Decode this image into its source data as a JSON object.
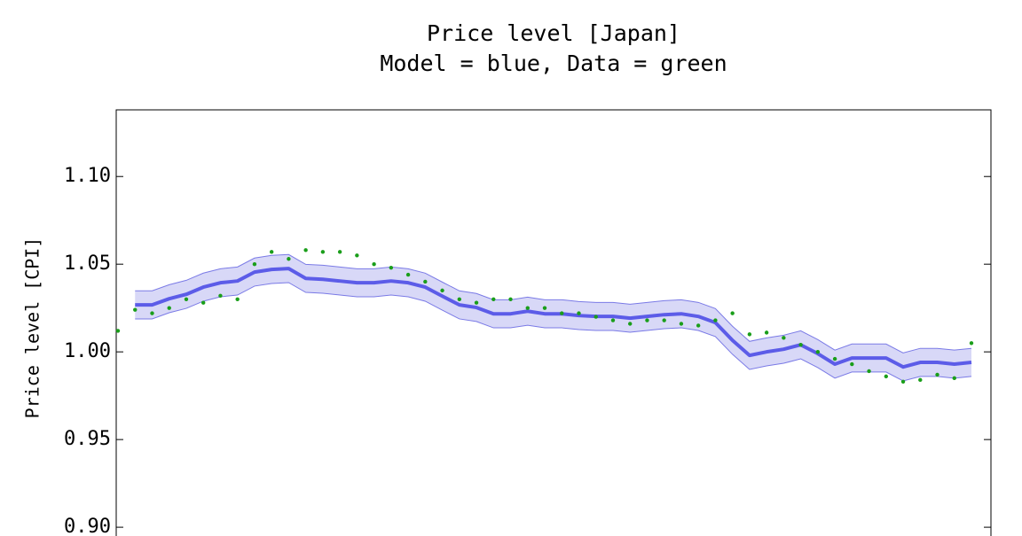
{
  "chart_data": {
    "type": "line",
    "title": "Price level [Japan]",
    "subtitle": "Model = blue, Data = green",
    "ylabel": "Price level [CPI]",
    "ylim": [
      0.895,
      1.138
    ],
    "yticks": [
      {
        "value": 0.9,
        "label": "0.90"
      },
      0.95,
      {
        "value": 1.0,
        "label": "1.00"
      },
      1.05,
      {
        "value": 1.1,
        "label": "1.10"
      }
    ],
    "band": {
      "color": "#d8d8f7",
      "edge_color": "#7a7ae6",
      "upper": [
        null,
        1.0348,
        1.0348,
        1.0383,
        1.0408,
        1.0449,
        1.0474,
        1.0484,
        1.0535,
        1.055,
        1.0555,
        1.0499,
        1.0494,
        1.0484,
        1.0474,
        1.0474,
        1.0484,
        1.0474,
        1.0449,
        1.0398,
        1.0348,
        1.0333,
        1.0297,
        1.0297,
        1.0312,
        1.0297,
        1.0297,
        1.0287,
        1.0282,
        1.0282,
        1.0272,
        1.0282,
        1.0292,
        1.0297,
        1.0282,
        1.0247,
        1.0146,
        1.006,
        1.008,
        1.0095,
        1.012,
        1.007,
        1.001,
        1.0045,
        1.0045,
        1.0045,
        0.9994,
        1.002,
        1.002,
        1.001,
        1.002
      ],
      "lower": [
        null,
        1.0188,
        1.0188,
        1.0223,
        1.0248,
        1.0289,
        1.0314,
        1.0324,
        1.0375,
        1.039,
        1.0395,
        1.0339,
        1.0334,
        1.0324,
        1.0314,
        1.0314,
        1.0324,
        1.0314,
        1.0289,
        1.0238,
        1.0188,
        1.0173,
        1.0137,
        1.0137,
        1.0152,
        1.0137,
        1.0137,
        1.0127,
        1.0122,
        1.0122,
        1.0112,
        1.0122,
        1.0132,
        1.0137,
        1.0122,
        1.0087,
        0.9986,
        0.99,
        0.992,
        0.9935,
        0.996,
        0.991,
        0.985,
        0.9885,
        0.9885,
        0.9885,
        0.9834,
        0.986,
        0.986,
        0.985,
        0.986
      ]
    },
    "series": [
      {
        "style": "line",
        "color": "#5c5ce8",
        "values": [
          null,
          1.0268,
          1.0268,
          1.0303,
          1.0328,
          1.0369,
          1.0394,
          1.0404,
          1.0455,
          1.047,
          1.0475,
          1.0419,
          1.0414,
          1.0404,
          1.0394,
          1.0394,
          1.0404,
          1.0394,
          1.0369,
          1.0318,
          1.0268,
          1.0253,
          1.0217,
          1.0217,
          1.0232,
          1.0217,
          1.0217,
          1.0207,
          1.0202,
          1.0202,
          1.0192,
          1.0202,
          1.0212,
          1.0217,
          1.0202,
          1.0167,
          1.0066,
          0.998,
          1.0,
          1.0015,
          1.004,
          0.999,
          0.993,
          0.9965,
          0.9965,
          0.9965,
          0.9914,
          0.994,
          0.994,
          0.993,
          0.994
        ]
      },
      {
        "style": "points",
        "color": "#1a9e1a",
        "values": [
          1.012,
          1.024,
          1.022,
          1.025,
          1.03,
          1.028,
          1.032,
          1.03,
          1.05,
          1.057,
          1.053,
          1.058,
          1.057,
          1.057,
          1.055,
          1.05,
          1.048,
          1.044,
          1.04,
          1.035,
          1.03,
          1.028,
          1.03,
          1.03,
          1.025,
          1.025,
          1.022,
          1.022,
          1.02,
          1.018,
          1.016,
          1.018,
          1.018,
          1.016,
          1.015,
          1.018,
          1.022,
          1.01,
          1.011,
          1.008,
          1.004,
          1.0,
          0.996,
          0.993,
          0.989,
          0.986,
          0.983,
          0.984,
          0.987,
          0.985,
          1.005
        ]
      }
    ]
  }
}
